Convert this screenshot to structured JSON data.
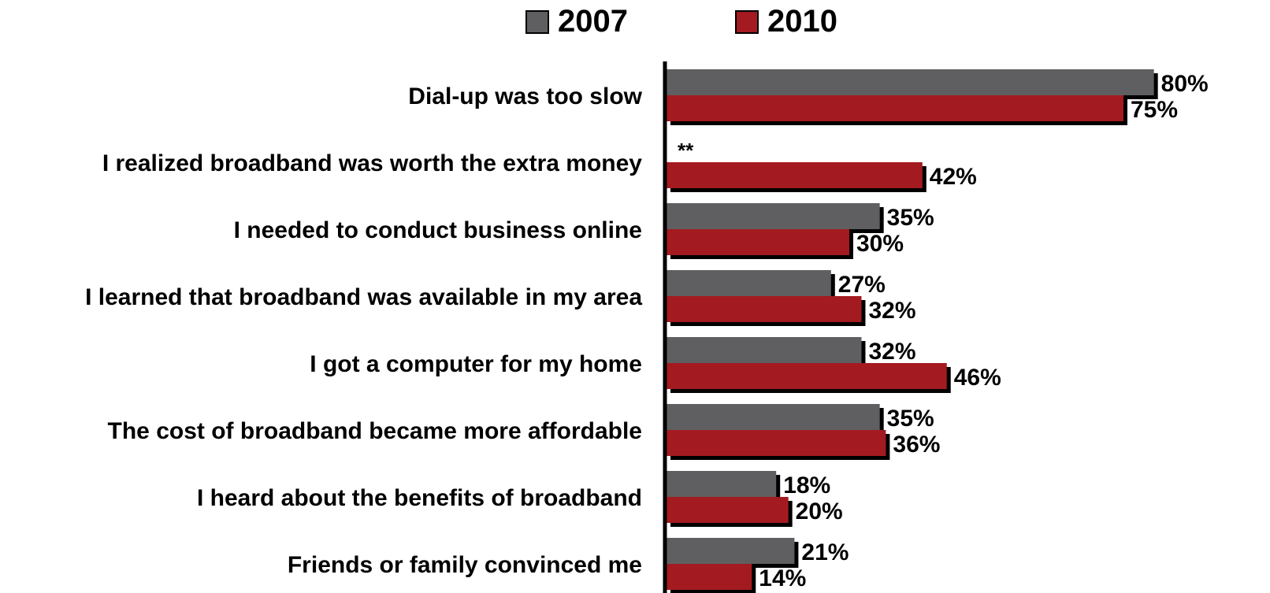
{
  "chart_data": {
    "type": "bar",
    "orientation": "horizontal",
    "categories": [
      "Dial-up was too slow",
      "I realized broadband was worth the extra money",
      "I needed to conduct business online",
      "I learned that broadband was available in my area",
      "I got a computer for my home",
      "The cost of broadband became more affordable",
      "I heard about the benefits of broadband",
      "Friends or family convinced me"
    ],
    "series": [
      {
        "name": "2007",
        "color": "#5f5f61",
        "values": [
          80,
          null,
          35,
          27,
          32,
          35,
          18,
          21
        ],
        "labels": [
          "80%",
          "",
          "35%",
          "27%",
          "32%",
          "35%",
          "18%",
          "21%"
        ]
      },
      {
        "name": "2010",
        "color": "#a31b20",
        "values": [
          75,
          42,
          30,
          32,
          46,
          36,
          20,
          14
        ],
        "labels": [
          "75%",
          "42%",
          "30%",
          "32%",
          "46%",
          "36%",
          "20%",
          "14%"
        ]
      }
    ],
    "annotations": [
      {
        "category_index": 1,
        "series": "2007",
        "text": "**"
      }
    ],
    "xlim": [
      0,
      90
    ],
    "legend_position": "top-center",
    "grid": false
  }
}
